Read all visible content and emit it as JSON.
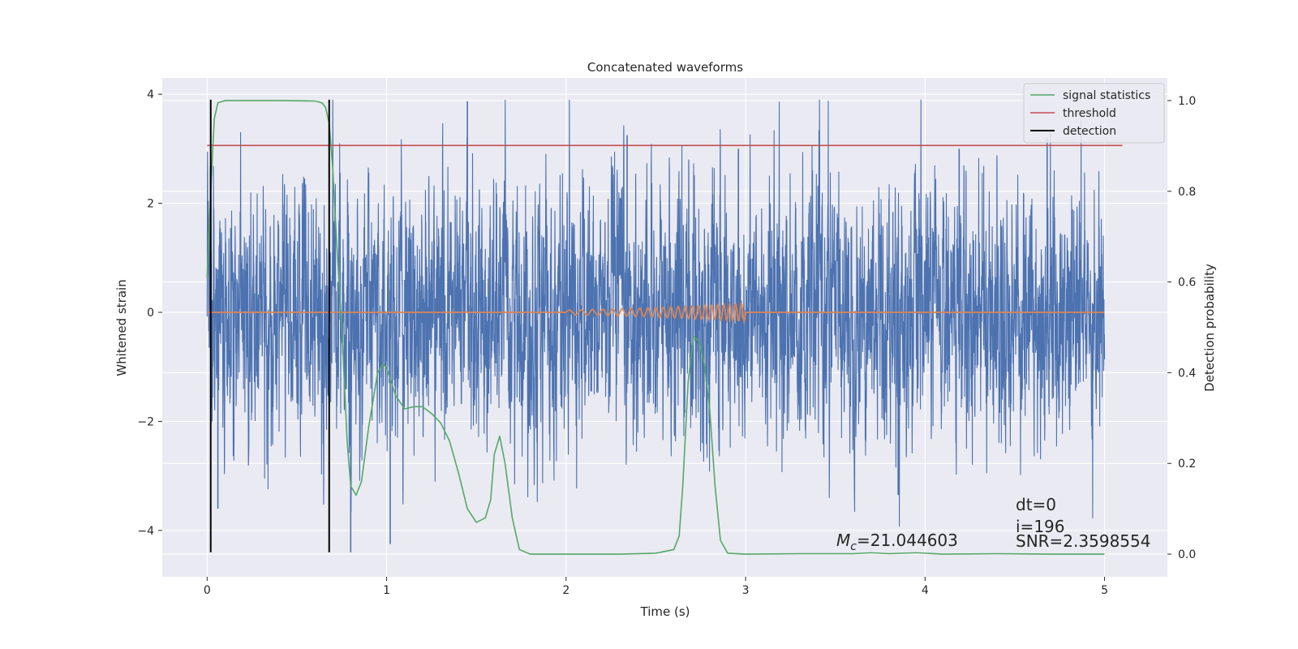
{
  "chart_data": {
    "type": "line",
    "title": "Concatenated waveforms",
    "xlabel": "Time (s)",
    "ylabel": "Whitened strain",
    "y2label": "Detection probability",
    "xlim": [
      -0.25,
      5.35
    ],
    "ylim": [
      -4.85,
      4.3
    ],
    "y2lim": [
      -0.05,
      1.05
    ],
    "xticks": [
      0,
      1,
      2,
      3,
      4,
      5
    ],
    "yticks": [
      -4,
      -2,
      0,
      2,
      4
    ],
    "y2ticks": [
      0.0,
      0.2,
      0.4,
      0.6,
      0.8,
      1.0
    ],
    "xtick_labels": [
      "0",
      "1",
      "2",
      "3",
      "4",
      "5"
    ],
    "ytick_labels": [
      "−4",
      "−2",
      "0",
      "2",
      "4"
    ],
    "y2tick_labels": [
      "0.0",
      "0.2",
      "0.4",
      "0.6",
      "0.8",
      "1.0"
    ],
    "grid": true,
    "legend_position": "top-right",
    "colors": {
      "background": "#eaeaf2",
      "grid": "#ffffff",
      "strain": "#4c72b0",
      "template": "#dd8452",
      "signal_statistics": "#55a868",
      "threshold": "#c44e52",
      "detection": "#000000"
    },
    "series": [
      {
        "name": "signal statistics",
        "axis": "right",
        "x": [
          0,
          0.02,
          0.04,
          0.06,
          0.1,
          0.2,
          0.4,
          0.6,
          0.64,
          0.66,
          0.68,
          0.7,
          0.72,
          0.75,
          0.78,
          0.8,
          0.83,
          0.86,
          0.9,
          0.95,
          0.98,
          1.0,
          1.05,
          1.1,
          1.15,
          1.2,
          1.25,
          1.3,
          1.35,
          1.4,
          1.45,
          1.5,
          1.55,
          1.58,
          1.6,
          1.63,
          1.66,
          1.7,
          1.74,
          1.8,
          2.0,
          2.3,
          2.5,
          2.6,
          2.63,
          2.65,
          2.68,
          2.71,
          2.74,
          2.77,
          2.8,
          2.83,
          2.86,
          2.9,
          3.0,
          3.3,
          3.6,
          3.7,
          3.8,
          3.95,
          4.1,
          4.4,
          4.7,
          5.0
        ],
        "y": [
          0.61,
          0.8,
          0.96,
          0.995,
          1.0,
          1.0,
          1.0,
          0.999,
          0.995,
          0.985,
          0.95,
          0.85,
          0.7,
          0.5,
          0.25,
          0.15,
          0.13,
          0.16,
          0.28,
          0.4,
          0.42,
          0.41,
          0.35,
          0.32,
          0.325,
          0.325,
          0.31,
          0.29,
          0.25,
          0.18,
          0.1,
          0.07,
          0.08,
          0.12,
          0.22,
          0.26,
          0.2,
          0.08,
          0.01,
          0.0,
          0.0,
          0.0,
          0.002,
          0.01,
          0.04,
          0.15,
          0.38,
          0.48,
          0.47,
          0.42,
          0.32,
          0.15,
          0.03,
          0.002,
          0.0,
          0.001,
          0.001,
          0.003,
          0.001,
          0.003,
          0.0,
          0.001,
          0.0,
          0.0
        ]
      },
      {
        "name": "threshold",
        "axis": "right",
        "x": [
          0,
          5.1
        ],
        "y": [
          0.901,
          0.901
        ]
      },
      {
        "name": "detection",
        "axis": "left",
        "x_positions": [
          0.02,
          0.68
        ],
        "y_range": [
          -4.4,
          3.9
        ]
      }
    ],
    "strain": {
      "axis": "left",
      "x_range": [
        0,
        5
      ],
      "min": -4.4,
      "max": 3.9,
      "notable_peaks": [
        {
          "x": 1.45,
          "y": 3.87
        },
        {
          "x": 2.34,
          "y": 3.25
        },
        {
          "x": 2.96,
          "y": 3.0
        },
        {
          "x": 4.68,
          "y": 3.2
        },
        {
          "x": 4.19,
          "y": 3.0
        },
        {
          "x": 0.8,
          "y": -4.4
        },
        {
          "x": 0.06,
          "y": -3.6
        },
        {
          "x": 3.85,
          "y": -3.35
        },
        {
          "x": 1.02,
          "y": -4.25
        }
      ]
    },
    "template": {
      "axis": "left",
      "x_range": [
        0,
        5
      ],
      "chirp_start": 2.0,
      "chirp_end": 3.0,
      "max_amplitude": 0.17
    },
    "annotations": {
      "chirp_mass_symbol": "M",
      "chirp_mass_subscript": "c",
      "chirp_mass_value": "=21.044603",
      "dt": "dt=0",
      "index": "i=196",
      "snr": "SNR=2.3598554"
    }
  }
}
